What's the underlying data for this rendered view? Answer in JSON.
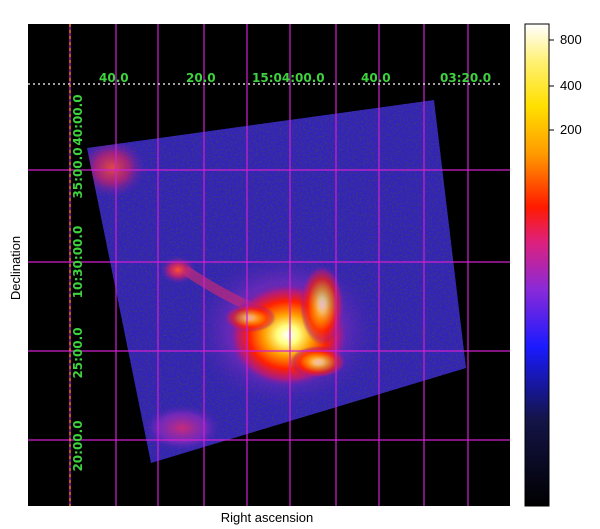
{
  "image": {
    "x_axis_label": "Right ascension",
    "y_axis_label": "Declination",
    "ra_tick_labels": [
      "40.0",
      "20.0",
      "15:04:00.0",
      "40.0",
      "03:20.0"
    ],
    "dec_tick_labels": [
      "40:00.0",
      "35:00.0",
      "10:30:00.0",
      "25:00.0",
      "20:00.0"
    ],
    "colorbar_ticks": [
      "800",
      "400",
      "200"
    ],
    "colors": {
      "background": "#000000",
      "grid": "#d020d0",
      "tick_text": "#3fd23f",
      "colormap": [
        "#000000",
        "#1a1a6e",
        "#1a1aff",
        "#7a2ad8",
        "#e0207a",
        "#ff2a00",
        "#ff8a00",
        "#ffe000",
        "#ffffff"
      ]
    }
  }
}
